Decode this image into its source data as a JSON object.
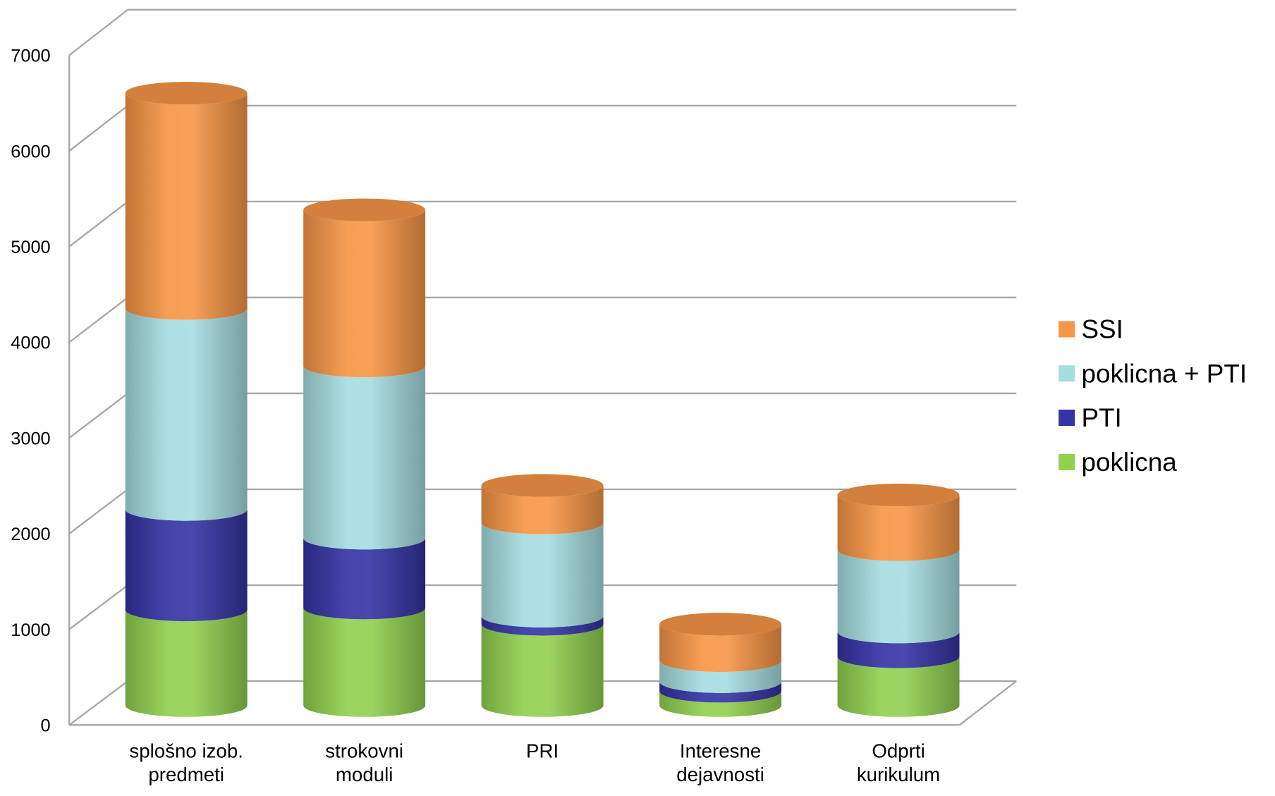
{
  "chart_data": {
    "type": "bar3d_cylinder_stacked",
    "categories": [
      "splošno izob. predmeti",
      "strokovni moduli",
      "PRI",
      "Interesne dejavnosti",
      "Odprti kurikulum"
    ],
    "series": [
      {
        "name": "poklicna",
        "color": "#92d050",
        "values": [
          1000,
          1020,
          850,
          150,
          510
        ]
      },
      {
        "name": "PTI",
        "color": "#3434a4",
        "values": [
          1050,
          730,
          85,
          100,
          260
        ]
      },
      {
        "name": "poklicna + PTI",
        "color": "#a6dde0",
        "values": [
          2100,
          1800,
          975,
          220,
          860
        ]
      },
      {
        "name": "SSI",
        "color": "#f79646",
        "values": [
          2250,
          1630,
          390,
          380,
          570
        ]
      }
    ],
    "ylim": [
      0,
      7000
    ],
    "yticks": [
      0,
      1000,
      2000,
      3000,
      4000,
      5000,
      6000,
      7000
    ],
    "stacked": true,
    "grid": true,
    "legend": "right"
  }
}
